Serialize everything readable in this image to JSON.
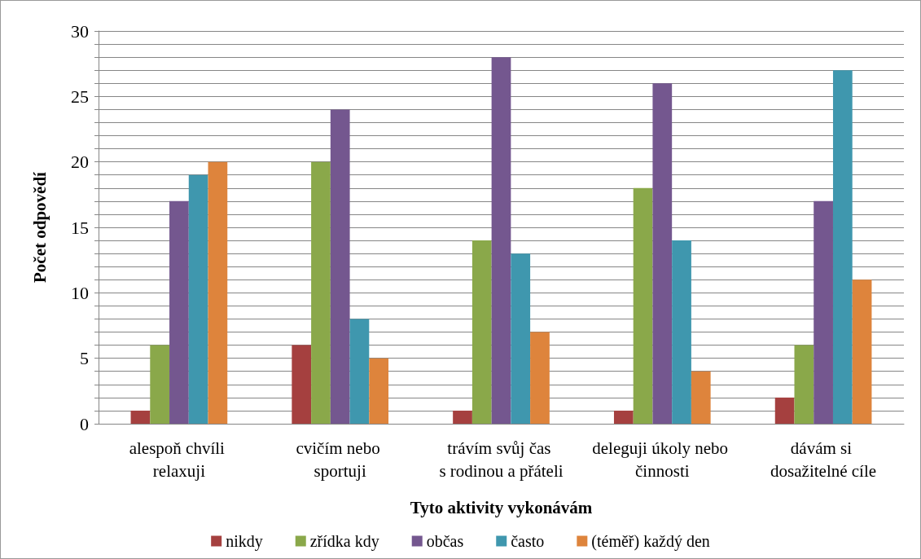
{
  "chart_data": {
    "type": "bar",
    "xlabel": "Tyto aktivity vykonávám",
    "ylabel": "Počet odpovědí",
    "categories": [
      "alespoň chvíli relaxuji",
      "cvičím nebo sportuji",
      "trávím svůj čas s rodinou a přáteli",
      "deleguji úkoly nebo činnosti",
      "dávám si dosažitelné cíle"
    ],
    "series": [
      {
        "name": "nikdy",
        "color": "#a5403f",
        "values": [
          1,
          6,
          1,
          1,
          2
        ]
      },
      {
        "name": "zřídka kdy",
        "color": "#8aa84a",
        "values": [
          6,
          20,
          14,
          18,
          6
        ]
      },
      {
        "name": "občas",
        "color": "#74578f",
        "values": [
          17,
          24,
          28,
          26,
          17
        ]
      },
      {
        "name": "často",
        "color": "#3f97ae",
        "values": [
          19,
          8,
          13,
          14,
          27
        ]
      },
      {
        "name": "(téměř) každý den",
        "color": "#de843c",
        "values": [
          20,
          5,
          7,
          4,
          11
        ]
      }
    ],
    "ylim": [
      0,
      30
    ],
    "yticks": [
      0,
      {
        "value": 1,
        "label": null
      },
      {
        "value": 2,
        "label": null
      },
      {
        "value": 3,
        "label": null
      },
      {
        "value": 4,
        "label": null
      },
      5,
      {
        "value": 6,
        "label": null
      },
      {
        "value": 7,
        "label": null
      },
      {
        "value": 8,
        "label": null
      },
      {
        "value": 9,
        "label": null
      },
      10,
      {
        "value": 11,
        "label": null
      },
      {
        "value": 12,
        "label": null
      },
      {
        "value": 13,
        "label": null
      },
      {
        "value": 14,
        "label": null
      },
      15,
      {
        "value": 16,
        "label": null
      },
      {
        "value": 17,
        "label": null
      },
      {
        "value": 18,
        "label": null
      },
      {
        "value": 19,
        "label": null
      },
      20,
      {
        "value": 21,
        "label": null
      },
      {
        "value": 22,
        "label": null
      },
      {
        "value": 23,
        "label": null
      },
      {
        "value": 24,
        "label": null
      },
      25,
      {
        "value": 26,
        "label": null
      },
      {
        "value": 27,
        "label": null
      },
      {
        "value": 28,
        "label": null
      },
      {
        "value": 29,
        "label": null
      },
      30
    ],
    "grid": "y",
    "legend": "bottom"
  }
}
